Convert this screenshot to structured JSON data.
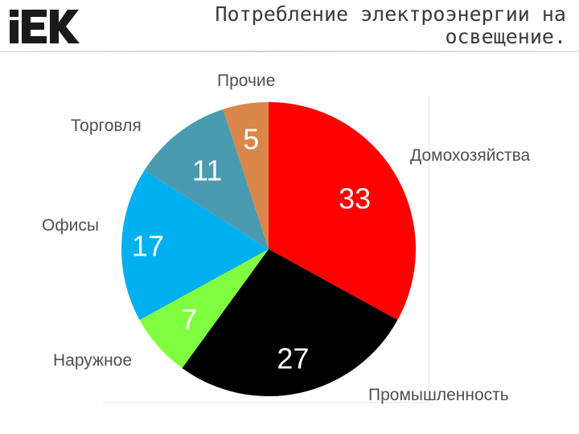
{
  "header": {
    "logo_text": "IEK",
    "title_line1": "Потребление электроэнергии на",
    "title_line2": "освещение."
  },
  "chart_data": {
    "type": "pie",
    "title": "Потребление электроэнергии на освещение.",
    "categories": [
      "Домохозяйства",
      "Промышленность",
      "Наружное",
      "Офисы",
      "Торговля",
      "Прочие"
    ],
    "values": [
      33,
      27,
      7,
      17,
      11,
      5
    ],
    "colors": [
      "#ff0000",
      "#000000",
      "#80ff40",
      "#00b0f0",
      "#4a9bb0",
      "#d9874a"
    ],
    "value_label_colors": [
      "#ffffff",
      "#ffffff",
      "#ffffff",
      "#ffffff",
      "#ffffff",
      "#ffffff"
    ],
    "start_angle_deg": 0,
    "direction": "clockwise",
    "legend": "none"
  }
}
